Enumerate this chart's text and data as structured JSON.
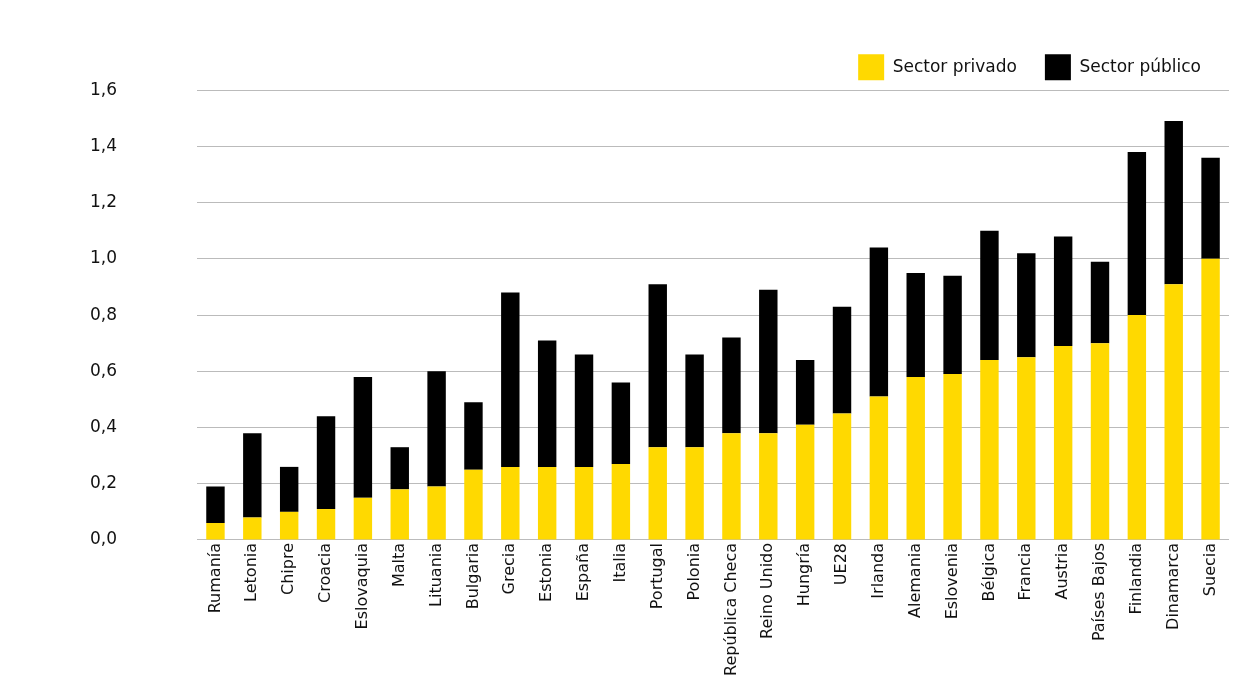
{
  "chart_data": {
    "type": "bar",
    "stacked": true,
    "categories": [
      "Rumanía",
      "Letonia",
      "Chipre",
      "Croacia",
      "Eslovaquia",
      "Malta",
      "Lituania",
      "Bulgaria",
      "Grecia",
      "Estonia",
      "España",
      "Italia",
      "Portugal",
      "Polonia",
      "República Checa",
      "Reino Unido",
      "Hungría",
      "UE28",
      "Irlanda",
      "Alemania",
      "Eslovenia",
      "Bélgica",
      "Francia",
      "Austria",
      "Países Bajos",
      "Finlandia",
      "Dinamarca",
      "Suecia"
    ],
    "series": [
      {
        "name": "Sector privado",
        "color": "#ffd900",
        "values": [
          0.06,
          0.08,
          0.1,
          0.11,
          0.15,
          0.18,
          0.19,
          0.25,
          0.26,
          0.26,
          0.26,
          0.27,
          0.33,
          0.33,
          0.38,
          0.38,
          0.41,
          0.45,
          0.51,
          0.58,
          0.59,
          0.64,
          0.65,
          0.69,
          0.7,
          0.8,
          0.91,
          1.0
        ]
      },
      {
        "name": "Sector público",
        "color": "#000000",
        "values": [
          0.13,
          0.3,
          0.16,
          0.33,
          0.43,
          0.15,
          0.41,
          0.24,
          0.62,
          0.45,
          0.4,
          0.29,
          0.58,
          0.33,
          0.34,
          0.51,
          0.23,
          0.38,
          0.53,
          0.37,
          0.35,
          0.46,
          0.37,
          0.39,
          0.29,
          0.58,
          0.58,
          0.36
        ]
      }
    ],
    "ylim": [
      0,
      1.6
    ],
    "yticks": [
      {
        "value": 0,
        "label": "0,0"
      },
      {
        "value": 0.2,
        "label": "0,2"
      },
      {
        "value": 0.4,
        "label": "0,4"
      },
      {
        "value": 0.6,
        "label": "0,6"
      },
      {
        "value": 0.8,
        "label": "0,8"
      },
      {
        "value": 1.0,
        "label": "1,0"
      },
      {
        "value": 1.2,
        "label": "1,2"
      },
      {
        "value": 1.4,
        "label": "1,4"
      },
      {
        "value": 1.6,
        "label": "1,6"
      }
    ],
    "grid": "y",
    "legend": "top right"
  }
}
